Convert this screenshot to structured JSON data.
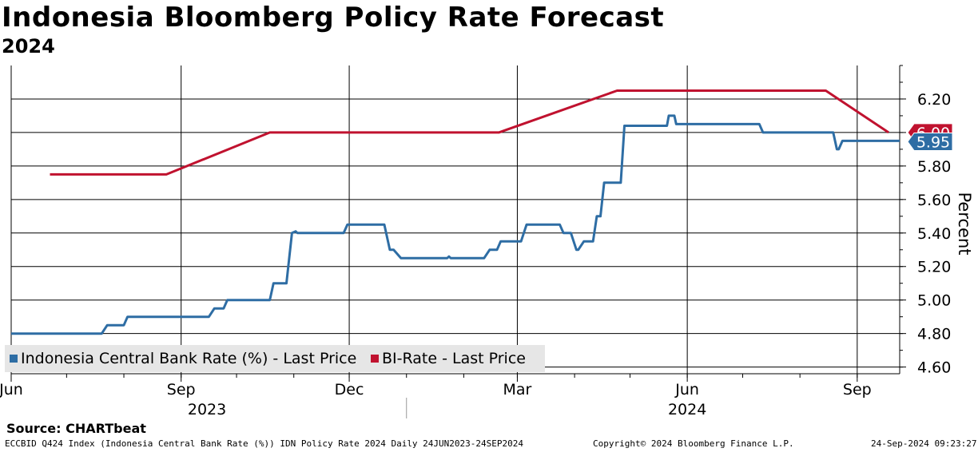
{
  "header": {
    "title": "Indonesia Bloomberg Policy Rate Forecast",
    "subtitle": "2024"
  },
  "footer": {
    "source": "Source:  CHARTbeat",
    "description": "ECCBID Q424 Index (Indonesia Central Bank Rate (%)) IDN Policy Rate 2024  Daily 24JUN2023-24SEP2024",
    "copyright": "Copyright© 2024 Bloomberg Finance L.P.",
    "timestamp": "24-Sep-2024 09:23:27"
  },
  "colors": {
    "blue": "#2e6da4",
    "red": "#c0122f"
  },
  "chart_data": {
    "type": "line",
    "title": "Indonesia Bloomberg Policy Rate Forecast",
    "subtitle": "2024",
    "ylabel": "Percent",
    "ylim": [
      4.56,
      6.4
    ],
    "yticks": [
      4.6,
      4.8,
      5.0,
      5.2,
      5.4,
      5.6,
      5.8,
      6.0,
      6.2
    ],
    "ytick_labels": [
      "4.60",
      "4.80",
      "5.00",
      "5.20",
      "5.40",
      "5.60",
      "5.80",
      "6.00",
      "6.20"
    ],
    "x_range": [
      "2023-06-01",
      "2024-09-24"
    ],
    "month_ticks": [
      {
        "date": "2023-06-01",
        "label": "Jun"
      },
      {
        "date": "2023-09-01",
        "label": "Sep"
      },
      {
        "date": "2023-12-01",
        "label": "Dec"
      },
      {
        "date": "2024-03-01",
        "label": "Mar"
      },
      {
        "date": "2024-06-01",
        "label": "Jun"
      },
      {
        "date": "2024-09-01",
        "label": "Sep"
      }
    ],
    "year_labels": [
      {
        "date": "2023-09-15",
        "label": "2023"
      },
      {
        "date": "2024-06-01",
        "label": "2024"
      }
    ],
    "legend_position": "bottom-left",
    "series": [
      {
        "name": "Indonesia Central Bank Rate (%) - Last Price",
        "color": "#2e6da4",
        "last_value": "5.95",
        "points": [
          [
            "2023-06-01",
            4.8
          ],
          [
            "2023-07-20",
            4.8
          ],
          [
            "2023-07-23",
            4.85
          ],
          [
            "2023-08-01",
            4.85
          ],
          [
            "2023-08-03",
            4.9
          ],
          [
            "2023-09-16",
            4.9
          ],
          [
            "2023-09-19",
            4.95
          ],
          [
            "2023-09-24",
            4.95
          ],
          [
            "2023-09-26",
            5.0
          ],
          [
            "2023-10-19",
            5.0
          ],
          [
            "2023-10-21",
            5.1
          ],
          [
            "2023-10-28",
            5.1
          ],
          [
            "2023-10-31",
            5.4
          ],
          [
            "2023-11-02",
            5.41
          ],
          [
            "2023-11-03",
            5.4
          ],
          [
            "2023-11-28",
            5.4
          ],
          [
            "2023-11-30",
            5.45
          ],
          [
            "2023-12-20",
            5.45
          ],
          [
            "2023-12-23",
            5.3
          ],
          [
            "2023-12-25",
            5.3
          ],
          [
            "2023-12-29",
            5.25
          ],
          [
            "2024-01-23",
            5.25
          ],
          [
            "2024-01-24",
            5.26
          ],
          [
            "2024-01-25",
            5.25
          ],
          [
            "2024-02-12",
            5.25
          ],
          [
            "2024-02-15",
            5.3
          ],
          [
            "2024-02-19",
            5.3
          ],
          [
            "2024-02-21",
            5.35
          ],
          [
            "2024-03-03",
            5.35
          ],
          [
            "2024-03-06",
            5.45
          ],
          [
            "2024-03-24",
            5.45
          ],
          [
            "2024-03-26",
            5.4
          ],
          [
            "2024-03-30",
            5.4
          ],
          [
            "2024-04-02",
            5.3
          ],
          [
            "2024-04-03",
            5.3
          ],
          [
            "2024-04-06",
            5.35
          ],
          [
            "2024-04-11",
            5.35
          ],
          [
            "2024-04-13",
            5.5
          ],
          [
            "2024-04-15",
            5.5
          ],
          [
            "2024-04-17",
            5.7
          ],
          [
            "2024-04-26",
            5.7
          ],
          [
            "2024-04-28",
            6.04
          ],
          [
            "2024-05-21",
            6.04
          ],
          [
            "2024-05-22",
            6.1
          ],
          [
            "2024-05-25",
            6.1
          ],
          [
            "2024-05-26",
            6.05
          ],
          [
            "2024-07-10",
            6.05
          ],
          [
            "2024-07-12",
            6.0
          ],
          [
            "2024-08-19",
            6.0
          ],
          [
            "2024-08-21",
            5.9
          ],
          [
            "2024-08-22",
            5.9
          ],
          [
            "2024-08-24",
            5.95
          ],
          [
            "2024-09-24",
            5.95
          ]
        ]
      },
      {
        "name": "BI-Rate - Last Price",
        "color": "#c0122f",
        "last_value": "6.00",
        "points": [
          [
            "2023-06-22",
            5.75
          ],
          [
            "2023-08-24",
            5.75
          ],
          [
            "2023-10-19",
            6.0
          ],
          [
            "2024-02-20",
            6.0
          ],
          [
            "2024-04-24",
            6.25
          ],
          [
            "2024-08-15",
            6.25
          ],
          [
            "2024-09-18",
            6.0
          ]
        ]
      }
    ]
  }
}
